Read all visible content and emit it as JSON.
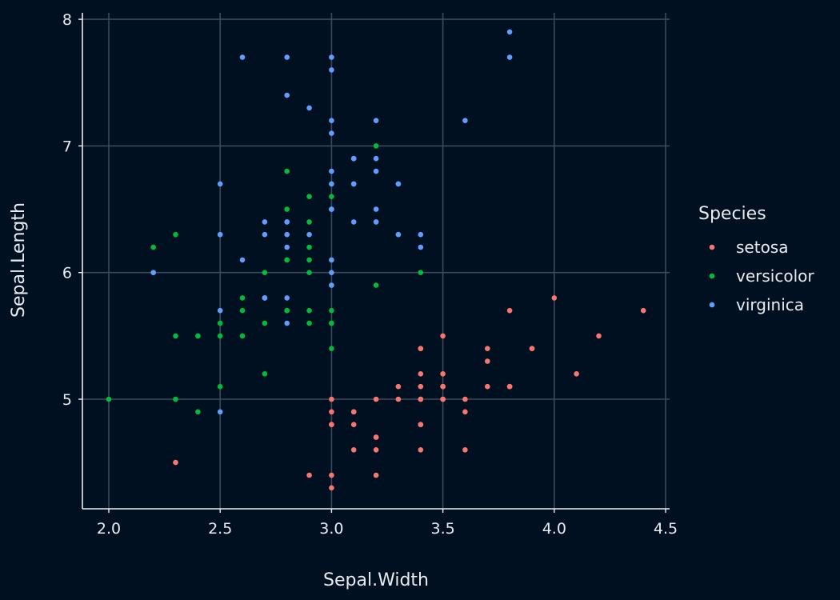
{
  "chart_data": {
    "type": "scatter",
    "xlabel": "Sepal.Width",
    "ylabel": "Sepal.Length",
    "xlim": [
      2.0,
      4.5
    ],
    "ylim": [
      4.3,
      8.0
    ],
    "x_ticks": [
      2.0,
      2.5,
      3.0,
      3.5,
      4.0,
      4.5
    ],
    "x_tick_labels": [
      "2.0",
      "2.5",
      "3.0",
      "3.5",
      "4.0",
      "4.5"
    ],
    "y_ticks": [
      5,
      6,
      7,
      8
    ],
    "y_tick_labels": [
      "5",
      "6",
      "7",
      "8"
    ],
    "grid": true,
    "legend": {
      "title": "Species",
      "placement": "right"
    },
    "series": [
      {
        "name": "setosa",
        "color": "#F8766D",
        "points": [
          [
            3.5,
            5.1
          ],
          [
            3.0,
            4.9
          ],
          [
            3.2,
            4.7
          ],
          [
            3.1,
            4.6
          ],
          [
            3.6,
            5.0
          ],
          [
            3.9,
            5.4
          ],
          [
            3.4,
            4.6
          ],
          [
            3.4,
            5.0
          ],
          [
            2.9,
            4.4
          ],
          [
            3.1,
            4.9
          ],
          [
            3.7,
            5.4
          ],
          [
            3.4,
            4.8
          ],
          [
            3.0,
            4.8
          ],
          [
            3.0,
            4.3
          ],
          [
            4.0,
            5.8
          ],
          [
            4.4,
            5.7
          ],
          [
            3.9,
            5.4
          ],
          [
            3.5,
            5.1
          ],
          [
            3.8,
            5.7
          ],
          [
            3.8,
            5.1
          ],
          [
            3.4,
            5.4
          ],
          [
            3.7,
            5.1
          ],
          [
            3.6,
            4.6
          ],
          [
            3.3,
            5.1
          ],
          [
            3.4,
            4.8
          ],
          [
            3.0,
            5.0
          ],
          [
            3.4,
            5.0
          ],
          [
            3.5,
            5.2
          ],
          [
            3.4,
            5.2
          ],
          [
            3.2,
            4.7
          ],
          [
            3.1,
            4.8
          ],
          [
            3.4,
            5.4
          ],
          [
            4.1,
            5.2
          ],
          [
            4.2,
            5.5
          ],
          [
            3.1,
            4.9
          ],
          [
            3.2,
            5.0
          ],
          [
            3.5,
            5.5
          ],
          [
            3.6,
            4.9
          ],
          [
            3.0,
            4.4
          ],
          [
            3.4,
            5.1
          ],
          [
            3.5,
            5.0
          ],
          [
            2.3,
            4.5
          ],
          [
            3.2,
            4.4
          ],
          [
            3.5,
            5.0
          ],
          [
            3.8,
            5.1
          ],
          [
            3.0,
            4.8
          ],
          [
            3.8,
            5.1
          ],
          [
            3.2,
            4.6
          ],
          [
            3.7,
            5.3
          ],
          [
            3.3,
            5.0
          ]
        ]
      },
      {
        "name": "versicolor",
        "color": "#00BA38",
        "points": [
          [
            3.2,
            7.0
          ],
          [
            3.2,
            6.4
          ],
          [
            3.1,
            6.9
          ],
          [
            2.3,
            5.5
          ],
          [
            2.8,
            6.5
          ],
          [
            2.8,
            5.7
          ],
          [
            3.3,
            6.3
          ],
          [
            2.4,
            4.9
          ],
          [
            2.9,
            6.6
          ],
          [
            2.7,
            5.2
          ],
          [
            2.0,
            5.0
          ],
          [
            3.0,
            5.9
          ],
          [
            2.2,
            6.0
          ],
          [
            2.9,
            6.1
          ],
          [
            2.9,
            5.6
          ],
          [
            3.1,
            6.7
          ],
          [
            3.0,
            5.6
          ],
          [
            2.7,
            5.8
          ],
          [
            2.2,
            6.2
          ],
          [
            2.5,
            5.6
          ],
          [
            3.2,
            5.9
          ],
          [
            2.8,
            6.1
          ],
          [
            2.5,
            6.3
          ],
          [
            2.8,
            6.1
          ],
          [
            2.9,
            6.4
          ],
          [
            3.0,
            6.6
          ],
          [
            2.8,
            6.8
          ],
          [
            3.0,
            6.7
          ],
          [
            2.9,
            6.0
          ],
          [
            2.6,
            5.7
          ],
          [
            2.4,
            5.5
          ],
          [
            2.4,
            5.5
          ],
          [
            2.7,
            5.8
          ],
          [
            2.7,
            6.0
          ],
          [
            3.0,
            5.4
          ],
          [
            3.4,
            6.0
          ],
          [
            3.1,
            6.7
          ],
          [
            2.3,
            6.3
          ],
          [
            3.0,
            5.6
          ],
          [
            2.5,
            5.5
          ],
          [
            2.6,
            5.5
          ],
          [
            3.0,
            6.1
          ],
          [
            2.6,
            5.8
          ],
          [
            2.3,
            5.0
          ],
          [
            2.7,
            5.6
          ],
          [
            3.0,
            5.7
          ],
          [
            2.9,
            5.7
          ],
          [
            2.9,
            6.2
          ],
          [
            2.5,
            5.1
          ],
          [
            2.8,
            5.7
          ]
        ]
      },
      {
        "name": "virginica",
        "color": "#619CFF",
        "points": [
          [
            3.3,
            6.3
          ],
          [
            2.7,
            5.8
          ],
          [
            3.0,
            7.1
          ],
          [
            2.9,
            6.3
          ],
          [
            3.0,
            6.5
          ],
          [
            3.0,
            7.6
          ],
          [
            2.5,
            4.9
          ],
          [
            2.9,
            7.3
          ],
          [
            2.5,
            6.7
          ],
          [
            3.6,
            7.2
          ],
          [
            3.2,
            6.5
          ],
          [
            2.7,
            6.4
          ],
          [
            3.0,
            6.8
          ],
          [
            2.5,
            5.7
          ],
          [
            2.8,
            5.8
          ],
          [
            3.2,
            6.4
          ],
          [
            3.0,
            6.5
          ],
          [
            3.8,
            7.7
          ],
          [
            2.6,
            7.7
          ],
          [
            2.2,
            6.0
          ],
          [
            3.2,
            6.9
          ],
          [
            2.8,
            5.6
          ],
          [
            2.8,
            7.7
          ],
          [
            2.7,
            6.3
          ],
          [
            3.3,
            6.7
          ],
          [
            3.2,
            7.2
          ],
          [
            2.8,
            6.2
          ],
          [
            3.0,
            6.1
          ],
          [
            2.8,
            6.4
          ],
          [
            3.0,
            7.2
          ],
          [
            2.8,
            7.4
          ],
          [
            3.8,
            7.9
          ],
          [
            2.8,
            6.4
          ],
          [
            2.8,
            6.3
          ],
          [
            2.6,
            6.1
          ],
          [
            3.0,
            7.7
          ],
          [
            3.4,
            6.3
          ],
          [
            3.1,
            6.4
          ],
          [
            3.0,
            6.0
          ],
          [
            3.1,
            6.9
          ],
          [
            3.1,
            6.7
          ],
          [
            3.1,
            6.9
          ],
          [
            2.7,
            5.8
          ],
          [
            3.2,
            6.8
          ],
          [
            3.3,
            6.7
          ],
          [
            3.0,
            6.7
          ],
          [
            2.5,
            6.3
          ],
          [
            3.0,
            6.5
          ],
          [
            3.4,
            6.2
          ],
          [
            3.0,
            5.9
          ]
        ]
      }
    ]
  }
}
